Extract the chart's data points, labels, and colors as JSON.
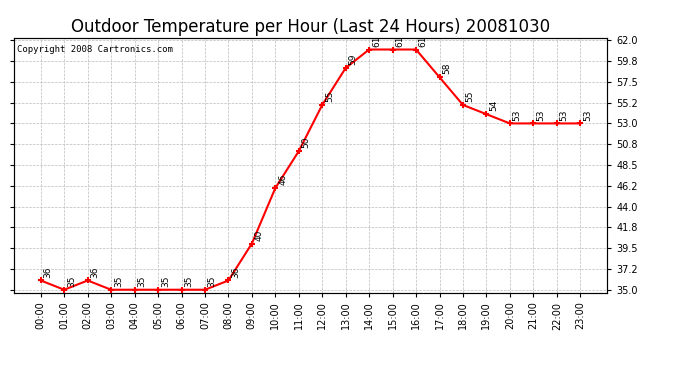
{
  "title": "Outdoor Temperature per Hour (Last 24 Hours) 20081030",
  "copyright": "Copyright 2008 Cartronics.com",
  "hours": [
    "00:00",
    "01:00",
    "02:00",
    "03:00",
    "04:00",
    "05:00",
    "06:00",
    "07:00",
    "08:00",
    "09:00",
    "10:00",
    "11:00",
    "12:00",
    "13:00",
    "14:00",
    "15:00",
    "16:00",
    "17:00",
    "18:00",
    "19:00",
    "20:00",
    "21:00",
    "22:00",
    "23:00"
  ],
  "temps": [
    36,
    35,
    36,
    35,
    35,
    35,
    35,
    35,
    36,
    40,
    46,
    50,
    55,
    59,
    61,
    61,
    61,
    58,
    55,
    54,
    53,
    53,
    53,
    53
  ],
  "line_color": "#ff0000",
  "marker_color": "#ff0000",
  "bg_color": "#ffffff",
  "grid_color": "#bbbbbb",
  "ylim_min": 35.0,
  "ylim_max": 62.0,
  "yticks": [
    35.0,
    37.2,
    39.5,
    41.8,
    44.0,
    46.2,
    48.5,
    50.8,
    53.0,
    55.2,
    57.5,
    59.8,
    62.0
  ],
  "title_fontsize": 12,
  "copyright_fontsize": 6.5,
  "label_fontsize": 6.5,
  "tick_fontsize": 7
}
